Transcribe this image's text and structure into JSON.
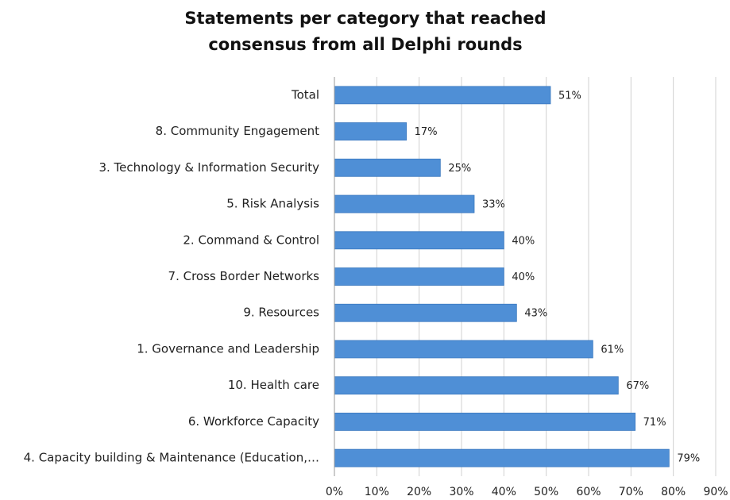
{
  "chart_data": {
    "type": "hbar",
    "title": [
      "Statements per category that reached",
      "consensus from all Delphi rounds"
    ],
    "categories": [
      "Total",
      "8. Community Engagement",
      "3. Technology & Information Security",
      "5. Risk Analysis",
      "2. Command & Control",
      "7. Cross Border Networks",
      "9. Resources",
      "1. Governance and Leadership",
      "10. Health care",
      "6. Workforce Capacity",
      "4. Capacity building & Maintenance (Education,…"
    ],
    "values": [
      51,
      17,
      25,
      33,
      40,
      40,
      43,
      61,
      67,
      71,
      79
    ],
    "value_labels": [
      "51%",
      "17%",
      "25%",
      "33%",
      "40%",
      "40%",
      "43%",
      "61%",
      "67%",
      "71%",
      "79%"
    ],
    "color": "#4f8fd6",
    "xlim": [
      0,
      90
    ],
    "xticks": [
      {
        "value": 0,
        "label": "0%"
      },
      {
        "value": 10,
        "label": "10%"
      },
      {
        "value": 20,
        "label": "20%"
      },
      {
        "value": 30,
        "label": "30%"
      },
      {
        "value": 40,
        "label": "40%"
      },
      {
        "value": 50,
        "label": "50%"
      },
      {
        "value": 60,
        "label": "60%"
      },
      {
        "value": 70,
        "label": "70%"
      },
      {
        "value": 80,
        "label": "80%"
      },
      {
        "value": 90,
        "label": "90%"
      }
    ],
    "grid": true
  }
}
